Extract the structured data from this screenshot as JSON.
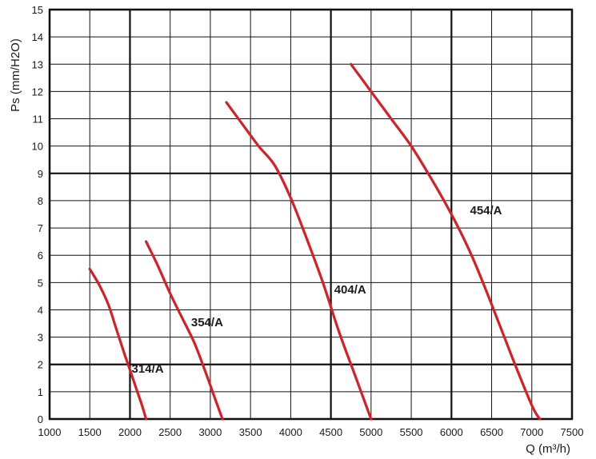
{
  "chart_data": {
    "type": "line",
    "title": "",
    "xlabel": "Q (m³/h)",
    "ylabel": "Ps (mm/H2O)",
    "xlim": [
      1000,
      7500
    ],
    "ylim": [
      0,
      15
    ],
    "x_ticks": [
      1000,
      1500,
      2000,
      2500,
      3000,
      3500,
      4000,
      4500,
      5000,
      5500,
      6000,
      6500,
      7000,
      7500
    ],
    "y_ticks": [
      0,
      1,
      2,
      3,
      4,
      5,
      6,
      7,
      8,
      9,
      10,
      11,
      12,
      13,
      14,
      15
    ],
    "major_x": [
      1000,
      2000,
      4500,
      6000,
      7500
    ],
    "major_y": [
      0,
      2,
      9,
      15
    ],
    "grid": true,
    "line_color": "#d42026",
    "series": [
      {
        "name": "314/A",
        "points": [
          [
            1500,
            5.5
          ],
          [
            1620,
            4.9
          ],
          [
            1730,
            4.2
          ],
          [
            1830,
            3.3
          ],
          [
            1930,
            2.4
          ],
          [
            2000,
            1.8
          ],
          [
            2080,
            1.1
          ],
          [
            2150,
            0.5
          ],
          [
            2200,
            0
          ]
        ]
      },
      {
        "name": "354/A",
        "points": [
          [
            2200,
            6.5
          ],
          [
            2350,
            5.6
          ],
          [
            2500,
            4.6
          ],
          [
            2650,
            3.7
          ],
          [
            2800,
            2.8
          ],
          [
            2930,
            1.8
          ],
          [
            3040,
            0.9
          ],
          [
            3150,
            0
          ]
        ]
      },
      {
        "name": "404/A",
        "points": [
          [
            3200,
            11.6
          ],
          [
            3400,
            10.8
          ],
          [
            3600,
            10.0
          ],
          [
            3800,
            9.3
          ],
          [
            4000,
            8.1
          ],
          [
            4200,
            6.6
          ],
          [
            4400,
            5.0
          ],
          [
            4600,
            3.2
          ],
          [
            4800,
            1.6
          ],
          [
            5000,
            0
          ]
        ]
      },
      {
        "name": "454/A",
        "points": [
          [
            4750,
            13.0
          ],
          [
            5000,
            12.0
          ],
          [
            5250,
            11.0
          ],
          [
            5500,
            10.0
          ],
          [
            5750,
            8.8
          ],
          [
            6000,
            7.5
          ],
          [
            6250,
            6.0
          ],
          [
            6500,
            4.2
          ],
          [
            6750,
            2.3
          ],
          [
            7000,
            0.5
          ],
          [
            7100,
            0
          ]
        ]
      }
    ],
    "annotations": [
      {
        "text": "314/A",
        "x": 2220,
        "y": 1.7
      },
      {
        "text": "354/A",
        "x": 2960,
        "y": 3.4
      },
      {
        "text": "404/A",
        "x": 4740,
        "y": 4.6
      },
      {
        "text": "454/A",
        "x": 6430,
        "y": 7.5
      }
    ]
  }
}
